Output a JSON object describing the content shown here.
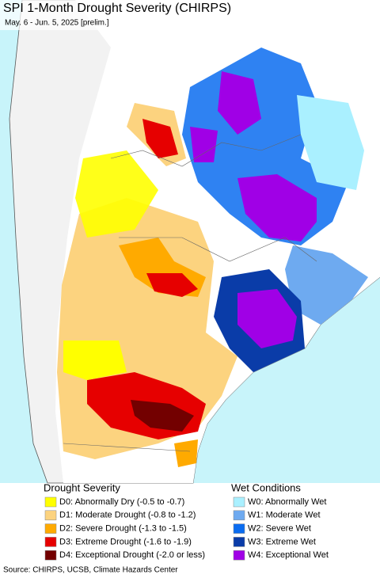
{
  "title": "SPI 1-Month Drought Severity (CHIRPS)",
  "subtitle": "May. 6 - Jun. 5, 2025 [prelim.]",
  "legend": {
    "drought": {
      "heading": "Drought Severity",
      "items": [
        {
          "label": "D0: Abnormally Dry (-0.5 to -0.7)",
          "color": "#ffff00"
        },
        {
          "label": "D1: Moderate Drought (-0.8 to -1.2)",
          "color": "#fcd37f"
        },
        {
          "label": "D2: Severe Drought (-1.3 to -1.5)",
          "color": "#ffaa00"
        },
        {
          "label": "D3: Extreme Drought (-1.6 to -1.9)",
          "color": "#e60000"
        },
        {
          "label": "D4: Exceptional Drought (-2.0 or less)",
          "color": "#730000"
        }
      ]
    },
    "wet": {
      "heading": "Wet Conditions",
      "items": [
        {
          "label": "W0: Abnormally Wet",
          "color": "#aaf0ff"
        },
        {
          "label": "W1: Moderate Wet",
          "color": "#6eaaf0"
        },
        {
          "label": "W2: Severe Wet",
          "color": "#0a6cf0"
        },
        {
          "label": "W3: Extreme Wet",
          "color": "#0a3ca8"
        },
        {
          "label": "W4: Exceptional Wet",
          "color": "#a000e6"
        }
      ]
    }
  },
  "source": "Source: CHIRPS, UCSB, Climate Hazards Center"
}
